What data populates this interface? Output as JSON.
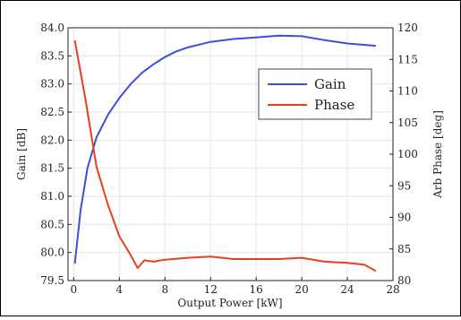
{
  "chart_data": {
    "type": "line",
    "title": "",
    "xlabel": "Output Power [kW]",
    "ylabel_left": "Gain [dB]",
    "ylabel_right": "Arb Phase [deg]",
    "xlim": [
      -0.5,
      28
    ],
    "ylim_left": [
      79.5,
      84.0
    ],
    "ylim_right": [
      80,
      120
    ],
    "x_ticks": [
      0,
      4,
      8,
      12,
      16,
      20,
      24,
      28
    ],
    "y_ticks_left": [
      79.5,
      80.0,
      80.5,
      81.0,
      81.5,
      82.0,
      82.5,
      83.0,
      83.5,
      84.0
    ],
    "y_ticks_right": [
      80,
      85,
      90,
      95,
      100,
      105,
      110,
      115,
      120
    ],
    "grid": true,
    "legend_position": "center-right",
    "series": [
      {
        "name": "Gain",
        "axis": "left",
        "color": "#3b4fd8",
        "x": [
          0.1,
          0.6,
          1.2,
          2.0,
          3.0,
          4.0,
          5.0,
          6.0,
          7.0,
          8.0,
          9.0,
          10.0,
          11.0,
          12.0,
          14.0,
          16.0,
          18.0,
          20.0,
          22.0,
          24.0,
          26.5
        ],
        "y": [
          79.8,
          80.75,
          81.5,
          82.05,
          82.45,
          82.75,
          83.0,
          83.2,
          83.35,
          83.48,
          83.58,
          83.65,
          83.7,
          83.75,
          83.8,
          83.83,
          83.86,
          83.85,
          83.78,
          83.72,
          83.68
        ]
      },
      {
        "name": "Phase",
        "axis": "right",
        "color": "#e8401c",
        "x": [
          0.1,
          1.0,
          2.0,
          3.0,
          4.0,
          5.0,
          5.6,
          6.2,
          7.0,
          8.0,
          10.0,
          12.0,
          14.0,
          16.0,
          18.0,
          20.0,
          22.0,
          24.0,
          25.5,
          26.5
        ],
        "y": [
          118,
          109,
          98,
          92,
          87,
          84,
          82,
          83.2,
          83.0,
          83.3,
          83.6,
          83.8,
          83.4,
          83.4,
          83.4,
          83.6,
          83.0,
          82.8,
          82.5,
          81.5
        ]
      }
    ]
  }
}
